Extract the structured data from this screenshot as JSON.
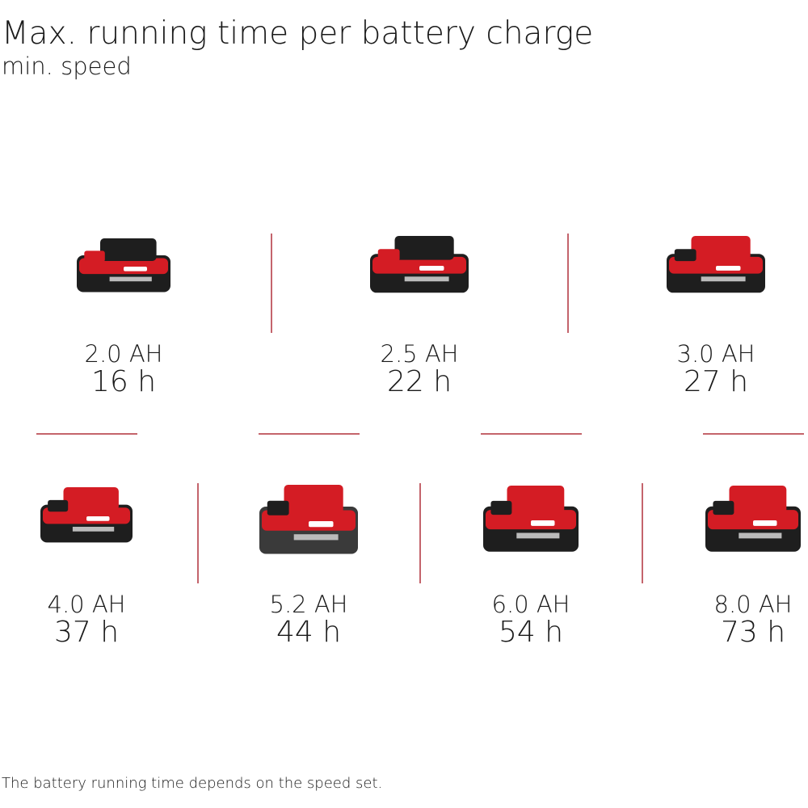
{
  "header": {
    "title": "Max. running time per battery charge",
    "subtitle": "min. speed"
  },
  "batteries": [
    {
      "capacity": "2.0 AH",
      "runtime": "16 h"
    },
    {
      "capacity": "2.5 AH",
      "runtime": "22 h"
    },
    {
      "capacity": "3.0 AH",
      "runtime": "27 h"
    },
    {
      "capacity": "4.0 AH",
      "runtime": "37 h"
    },
    {
      "capacity": "5.2 AH",
      "runtime": "44 h"
    },
    {
      "capacity": "6.0 AH",
      "runtime": "54 h"
    },
    {
      "capacity": "8.0 AH",
      "runtime": "73 h"
    }
  ],
  "footnote": "The battery running time depends on the speed set."
}
